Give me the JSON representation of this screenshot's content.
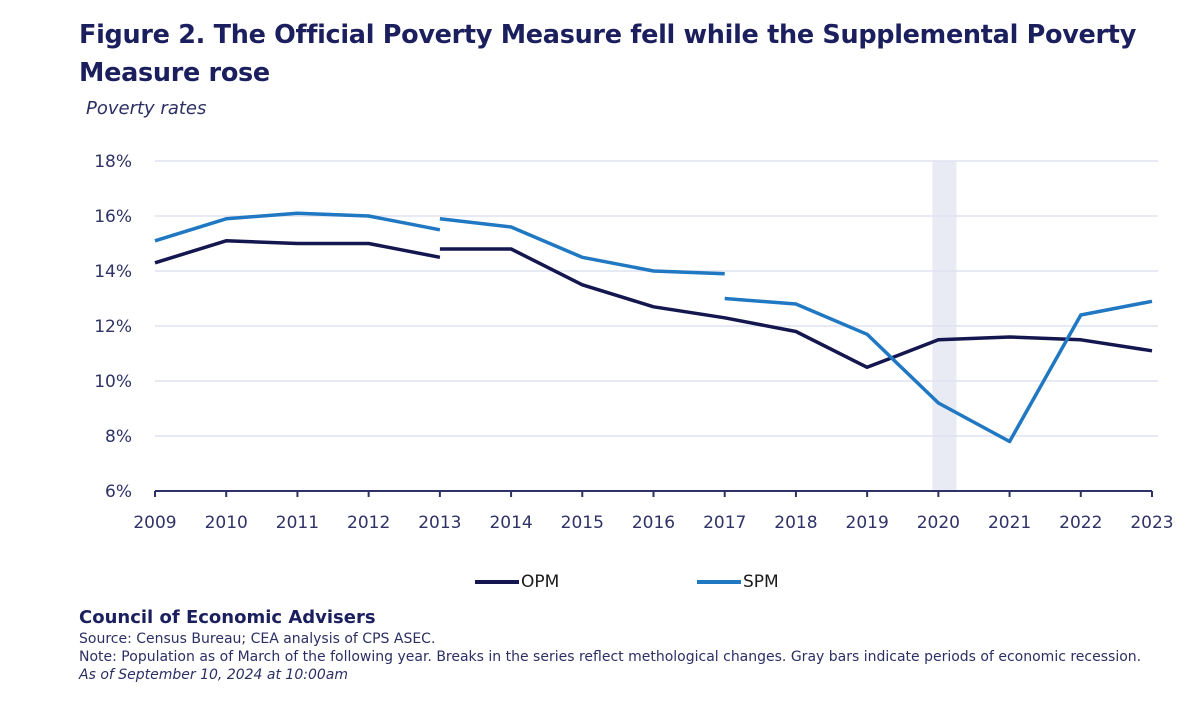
{
  "header": {
    "title": "Figure 2. The Official Poverty Measure fell while the Supplemental Poverty Measure rose",
    "subtitle": "Poverty rates"
  },
  "colors": {
    "opm": "#14174f",
    "spm": "#1f78c1",
    "grid": "#dfe2f0",
    "axis": "#2e3266",
    "recession": "#e9ebf4"
  },
  "legend": [
    {
      "key": "opm",
      "label": "OPM"
    },
    {
      "key": "spm",
      "label": "SPM"
    }
  ],
  "footer": {
    "org": "Council of Economic Advisers",
    "source": "Source: Census Bureau; CEA analysis of CPS ASEC.",
    "note": "Note: Population as of March of the following year. Breaks in the series reflect methological changes. Gray bars indicate periods of economic recession.",
    "as_of": "As of September 10, 2024 at 10:00am"
  },
  "chart_data": {
    "type": "line",
    "title": "Figure 2. The Official Poverty Measure fell while the Supplemental Poverty Measure rose",
    "subtitle": "Poverty rates",
    "xlabel": "",
    "ylabel": "",
    "x": [
      2009,
      2010,
      2011,
      2012,
      2013,
      2014,
      2015,
      2016,
      2017,
      2018,
      2019,
      2020,
      2021,
      2022,
      2023
    ],
    "xlim": [
      2009,
      2023
    ],
    "ylim": [
      6,
      18
    ],
    "y_ticks": [
      6,
      8,
      10,
      12,
      14,
      16,
      18
    ],
    "y_tick_labels": [
      "6%",
      "8%",
      "10%",
      "12%",
      "14%",
      "16%",
      "18%"
    ],
    "x_tick_labels": [
      "2009",
      "2010",
      "2011",
      "2012",
      "2013",
      "2014",
      "2015",
      "2016",
      "2017",
      "2018",
      "2019",
      "2020",
      "2021",
      "2022",
      "2023"
    ],
    "grid": true,
    "legend_position": "bottom-center",
    "recession_periods": [
      [
        2020.0,
        2020.17
      ]
    ],
    "series": [
      {
        "name": "OPM",
        "color_key": "opm",
        "segments": [
          {
            "x": [
              2009,
              2010,
              2011,
              2012,
              2013
            ],
            "values": [
              14.3,
              15.1,
              15.0,
              15.0,
              14.5
            ]
          },
          {
            "x": [
              2013,
              2014,
              2015,
              2016,
              2017,
              2018,
              2019,
              2020,
              2021,
              2022,
              2023
            ],
            "values": [
              14.8,
              14.8,
              13.5,
              12.7,
              12.3,
              11.8,
              10.5,
              11.5,
              11.6,
              11.5,
              11.1
            ]
          }
        ]
      },
      {
        "name": "SPM",
        "color_key": "spm",
        "segments": [
          {
            "x": [
              2009,
              2010,
              2011,
              2012,
              2013
            ],
            "values": [
              15.1,
              15.9,
              16.1,
              16.0,
              15.5
            ]
          },
          {
            "x": [
              2013,
              2014,
              2015,
              2016,
              2017
            ],
            "values": [
              15.9,
              15.6,
              14.5,
              14.0,
              13.9
            ]
          },
          {
            "x": [
              2017,
              2018,
              2019,
              2020,
              2021,
              2022,
              2023
            ],
            "values": [
              13.0,
              12.8,
              11.7,
              9.2,
              7.8,
              12.4,
              12.9
            ]
          }
        ]
      }
    ]
  }
}
